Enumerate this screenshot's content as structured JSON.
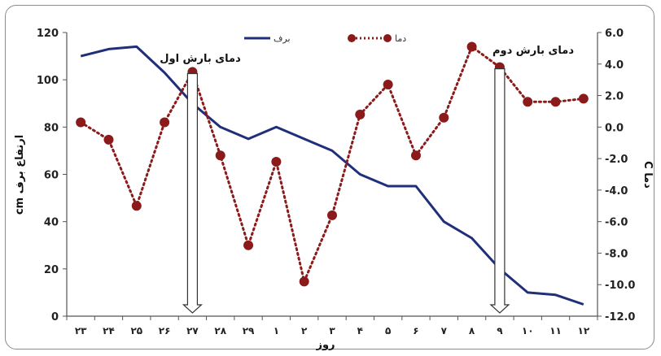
{
  "chart_data": {
    "type": "line",
    "categories": [
      "۲۳",
      "۲۴",
      "۲۵",
      "۲۶",
      "۲۷",
      "۲۸",
      "۲۹",
      "۱",
      "۲",
      "۳",
      "۴",
      "۵",
      "۶",
      "۷",
      "۸",
      "۹",
      "۱۰",
      "۱۱",
      "۱۲"
    ],
    "xlabel": "روز",
    "ylabel_left": "ارتفاع برف cm",
    "ylabel_right": "دما C",
    "ylim_left": [
      0,
      120
    ],
    "ylim_right": [
      -12,
      6
    ],
    "left_ticks": [
      "0",
      "20",
      "40",
      "60",
      "80",
      "100",
      "120"
    ],
    "right_ticks": [
      "-12.0",
      "-10.0",
      "-8.0",
      "-6.0",
      "-4.0",
      "-2.0",
      "0.0",
      "2.0",
      "4.0",
      "6.0"
    ],
    "grid": false,
    "legend_position": "top",
    "series": [
      {
        "name": "برف",
        "axis": "left",
        "style": "solid",
        "color": "#1f2f7a",
        "values": [
          110,
          113,
          114,
          103,
          90,
          80,
          75,
          80,
          75,
          70,
          60,
          55,
          55,
          40,
          33,
          20,
          10,
          9,
          5
        ]
      },
      {
        "name": "دما",
        "axis": "right",
        "style": "dotted-markers",
        "color": "#8b1a1a",
        "values": [
          0.3,
          -0.8,
          -5.0,
          0.3,
          3.5,
          -1.8,
          -7.5,
          -2.2,
          -9.8,
          -5.6,
          0.8,
          2.7,
          -1.8,
          0.6,
          5.1,
          3.8,
          1.6,
          1.6,
          1.8
        ]
      }
    ],
    "annotations": [
      {
        "text": "دمای بارش اول",
        "category_index": 4
      },
      {
        "text": "دمای بارش دوم",
        "category_index": 15
      }
    ]
  }
}
